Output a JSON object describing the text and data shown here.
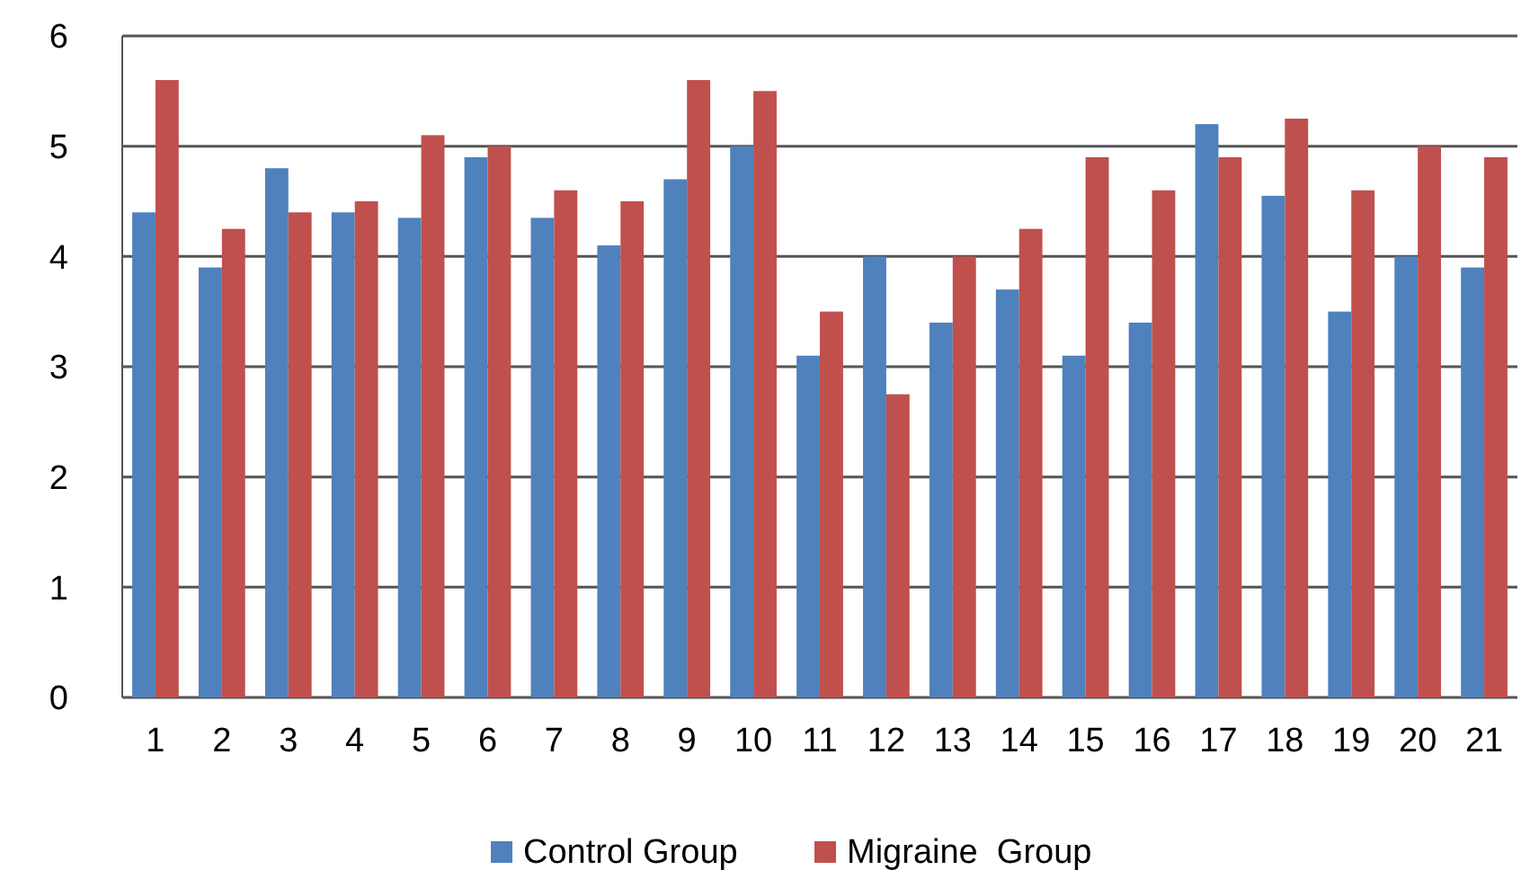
{
  "chart_data": {
    "type": "bar",
    "categories": [
      "1",
      "2",
      "3",
      "4",
      "5",
      "6",
      "7",
      "8",
      "9",
      "10",
      "11",
      "12",
      "13",
      "14",
      "15",
      "16",
      "17",
      "18",
      "19",
      "20",
      "21"
    ],
    "series": [
      {
        "name": "Control Group",
        "color": "#4f81bd",
        "values": [
          4.4,
          3.9,
          4.8,
          4.4,
          4.35,
          4.9,
          4.35,
          4.1,
          4.7,
          5.0,
          3.1,
          4.0,
          3.4,
          3.7,
          3.1,
          3.4,
          5.2,
          4.55,
          3.5,
          4.0,
          3.9
        ]
      },
      {
        "name": "Migraine  Group",
        "color": "#c0504d",
        "values": [
          5.6,
          4.25,
          4.4,
          4.5,
          5.1,
          5.0,
          4.6,
          4.5,
          5.6,
          5.5,
          3.5,
          2.75,
          4.0,
          4.25,
          4.9,
          4.6,
          4.9,
          5.25,
          4.6,
          5.0,
          4.9
        ]
      }
    ],
    "ylim": [
      0,
      6
    ],
    "yticks": [
      0,
      1,
      2,
      3,
      4,
      5,
      6
    ],
    "grid": "y",
    "legend": "bottom"
  }
}
